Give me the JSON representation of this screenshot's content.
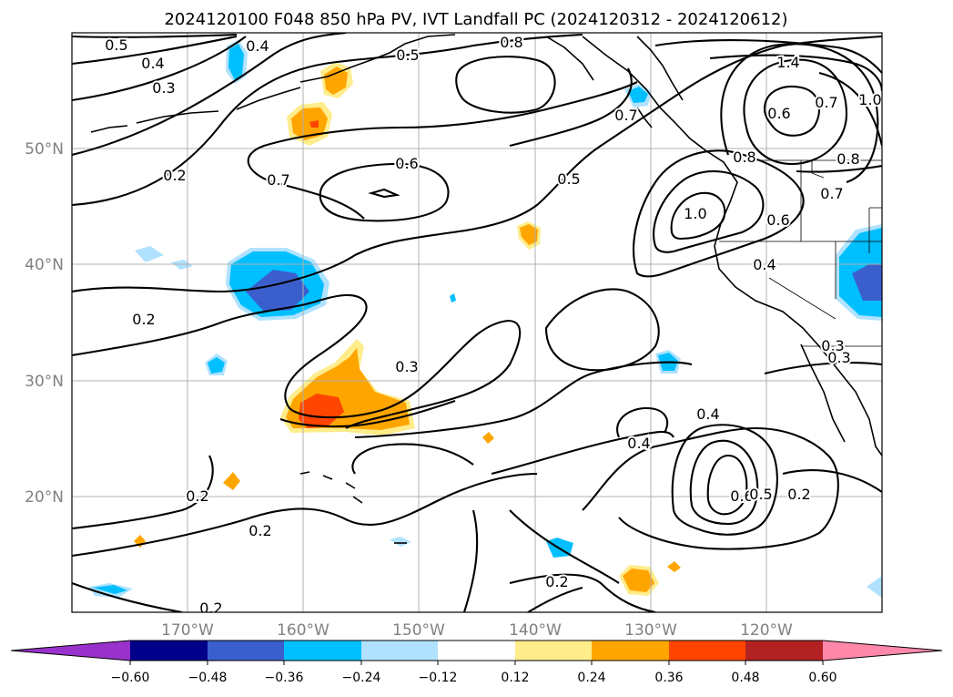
{
  "title": "2024120100 F048 850 hPa PV, IVT Landfall PC (2024120312 - 2024120612)",
  "lat_labels": [
    "50°N",
    "40°N",
    "30°N",
    "20°N"
  ],
  "lon_labels": [
    "170°W",
    "160°W",
    "150°W",
    "140°W",
    "130°W",
    "120°W"
  ],
  "contour_labels": [
    "0.5",
    "0.4",
    "0.3",
    "0.2",
    "0.4",
    "0.5",
    "0.8",
    "1.4",
    "0.7",
    "0.6",
    "1.0",
    "0.8",
    "0.7",
    "0.6",
    "0.8",
    "0.7",
    "0.5",
    "0.7",
    "1.0",
    "0.6",
    "0.4",
    "0.2",
    "0.3",
    "0.3",
    "0.3",
    "0.4",
    "0.4",
    "0.6",
    "0.5",
    "0.2",
    "0.2",
    "0.2",
    "0.2",
    "0.2"
  ],
  "colorbar": {
    "tick_labels": [
      "−0.60",
      "−0.48",
      "−0.36",
      "−0.24",
      "−0.12",
      "0.12",
      "0.24",
      "0.36",
      "0.48",
      "0.60"
    ],
    "colors": [
      "#9932cc",
      "#00008b",
      "#3a5fcd",
      "#00bfff",
      "#b0e2ff",
      "#ffffff",
      "#ffec8b",
      "#ffa500",
      "#ff4500",
      "#b22222",
      "#ff88aa"
    ]
  }
}
